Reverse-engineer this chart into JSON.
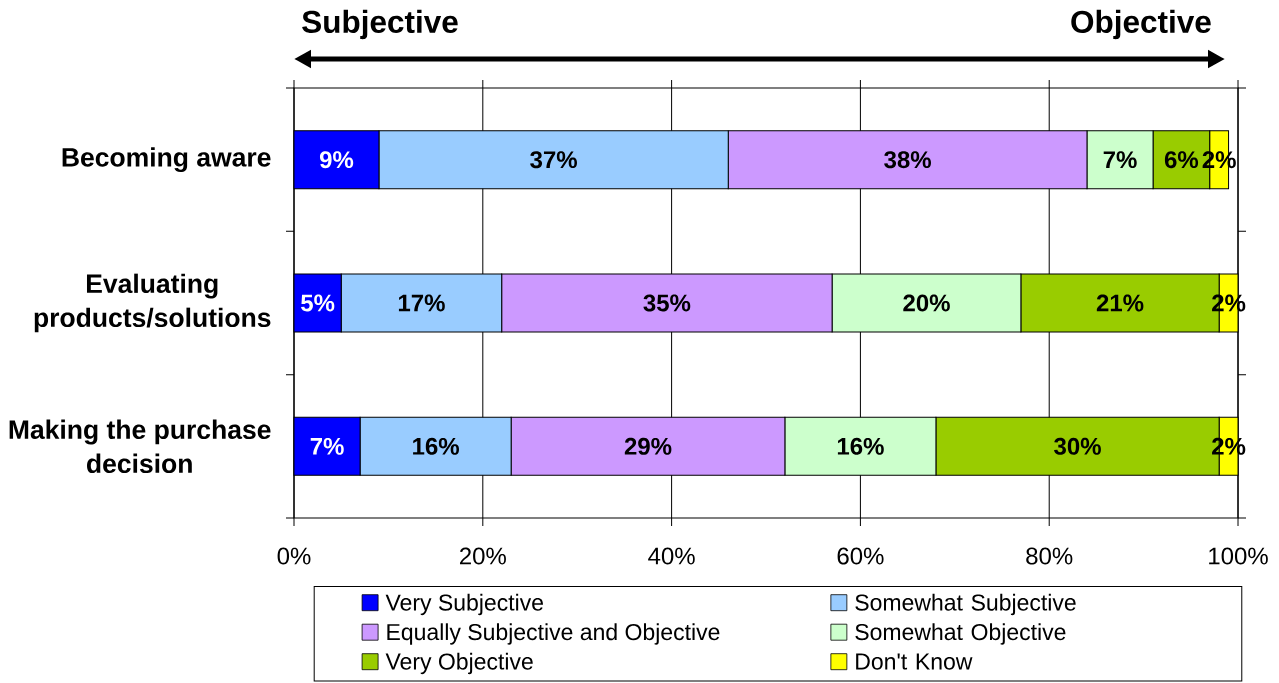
{
  "chart_data": {
    "type": "bar",
    "orientation": "horizontal",
    "stacked": true,
    "annotations": [
      "Subjective",
      "Objective"
    ],
    "categories": [
      "Becoming aware",
      "Evaluating products/solutions",
      "Making the purchase decision"
    ],
    "series": [
      {
        "name": "Very Subjective",
        "color": "#0000ff",
        "values": [
          9,
          5,
          7
        ],
        "value_labels": [
          "9%",
          "5%",
          "7%"
        ]
      },
      {
        "name": "Somewhat Subjective",
        "color": "#99ccff",
        "values": [
          37,
          17,
          16
        ],
        "value_labels": [
          "37%",
          "17%",
          "16%"
        ]
      },
      {
        "name": "Equally Subjective and Objective",
        "color": "#cc99ff",
        "values": [
          38,
          35,
          29
        ],
        "value_labels": [
          "38%",
          "35%",
          "29%"
        ]
      },
      {
        "name": "Somewhat Objective",
        "color": "#ccffcc",
        "values": [
          7,
          20,
          16
        ],
        "value_labels": [
          "7%",
          "20%",
          "16%"
        ]
      },
      {
        "name": "Very Objective",
        "color": "#99cc00",
        "values": [
          6,
          21,
          30
        ],
        "value_labels": [
          "6%",
          "21%",
          "30%"
        ]
      },
      {
        "name": "Don't Know",
        "color": "#ffff00",
        "values": [
          2,
          2,
          2
        ],
        "value_labels": [
          "2%",
          "2%",
          "2%"
        ]
      }
    ],
    "xlim": [
      0,
      100
    ],
    "xticks": [
      {
        "value": 0,
        "label": "0%"
      },
      {
        "value": 20,
        "label": "20%"
      },
      {
        "value": 40,
        "label": "40%"
      },
      {
        "value": 60,
        "label": "60%"
      },
      {
        "value": 80,
        "label": "80%"
      },
      {
        "value": 100,
        "label": "100%"
      }
    ],
    "grid": "x",
    "legend": "bottom"
  }
}
